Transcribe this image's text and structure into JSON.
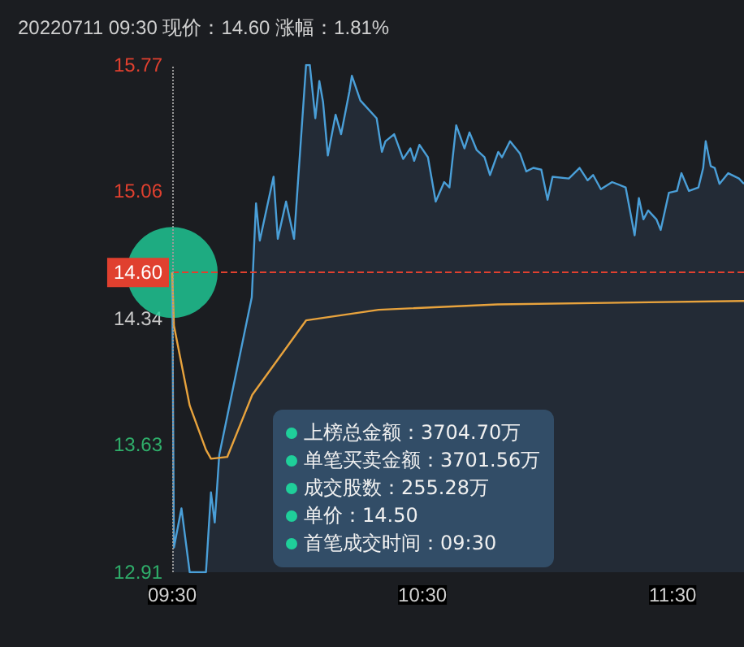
{
  "chart_data": {
    "type": "area",
    "title": "20220711 09:30 现价：14.60 涨幅：1.81%",
    "xlim": [
      9.5,
      11.785
    ],
    "xticks": [
      {
        "value": 9.5,
        "label": "09:30"
      },
      {
        "value": 10.5,
        "label": "10:30"
      },
      {
        "value": 11.5,
        "label": "11:30"
      }
    ],
    "ylim": [
      12.91,
      15.77
    ],
    "yticks": [
      12.91,
      13.63,
      14.34,
      15.06,
      15.77
    ],
    "grid": false,
    "series": [
      {
        "color": "#4a9fd8",
        "x": [
          9.5,
          9.507,
          9.537,
          9.57,
          9.635,
          9.655,
          9.67,
          9.688,
          9.818,
          9.835,
          9.85,
          9.905,
          9.922,
          9.955,
          9.987,
          10.035,
          10.05,
          10.072,
          10.088,
          10.103,
          10.122,
          10.153,
          10.175,
          10.208,
          10.218,
          10.252,
          10.317,
          10.338,
          10.352,
          10.387,
          10.423,
          10.452,
          10.467,
          10.488,
          10.522,
          10.553,
          10.587,
          10.608,
          10.635,
          10.668,
          10.688,
          10.717,
          10.748,
          10.77,
          10.803,
          10.818,
          10.85,
          10.89,
          10.915,
          10.943,
          10.975,
          11.0,
          11.02,
          11.085,
          11.128,
          11.16,
          11.182,
          11.213,
          11.258,
          11.312,
          11.348,
          11.365,
          11.383,
          11.402,
          11.435,
          11.452,
          11.485,
          11.517,
          11.535,
          11.565,
          11.603,
          11.622,
          11.632,
          11.652,
          11.668,
          11.687,
          11.722,
          11.765,
          11.785
        ],
        "values": [
          14.6,
          13.05,
          13.27,
          12.91,
          12.91,
          13.36,
          13.19,
          13.57,
          14.46,
          14.99,
          14.78,
          15.14,
          14.79,
          15.0,
          14.79,
          15.77,
          15.77,
          15.47,
          15.68,
          15.56,
          15.26,
          15.49,
          15.38,
          15.62,
          15.71,
          15.57,
          15.47,
          15.28,
          15.34,
          15.38,
          15.24,
          15.3,
          15.23,
          15.32,
          15.25,
          15.0,
          15.11,
          15.08,
          15.43,
          15.3,
          15.39,
          15.29,
          15.25,
          15.15,
          15.28,
          15.25,
          15.34,
          15.27,
          15.17,
          15.19,
          15.18,
          15.01,
          15.14,
          15.13,
          15.19,
          15.12,
          15.15,
          15.07,
          15.11,
          15.08,
          14.81,
          15.02,
          14.9,
          14.95,
          14.9,
          14.84,
          15.05,
          15.06,
          15.16,
          15.06,
          15.08,
          15.19,
          15.34,
          15.2,
          15.19,
          15.1,
          15.16,
          15.13,
          15.1
        ]
      },
      {
        "type": "line",
        "color": "#e8a33d",
        "x": [
          9.5,
          9.507,
          9.57,
          9.635,
          9.655,
          9.72,
          9.82,
          10.035,
          10.325,
          10.8,
          11.785
        ],
        "values": [
          14.6,
          14.3,
          13.85,
          13.6,
          13.55,
          13.56,
          13.91,
          14.33,
          14.39,
          14.42,
          14.44
        ]
      },
      {
        "type": "scatter",
        "color": "#1fcf9a",
        "x": [
          9.5
        ],
        "values": [
          14.6
        ]
      }
    ],
    "ref_lines": [
      {
        "axis": "y",
        "value": 14.6,
        "label": "14.60",
        "color": "#e0402f",
        "line_style": "dashed"
      },
      {
        "axis": "x",
        "value": 9.5,
        "color": "#9a9a9a",
        "line_style": "dotted"
      }
    ],
    "annotations": [
      "上榜总金额：3704.70万",
      "单笔买卖金额：3701.56万",
      "成交股数：255.28万",
      "单价：14.50",
      "首笔成交时间：09:30"
    ]
  }
}
